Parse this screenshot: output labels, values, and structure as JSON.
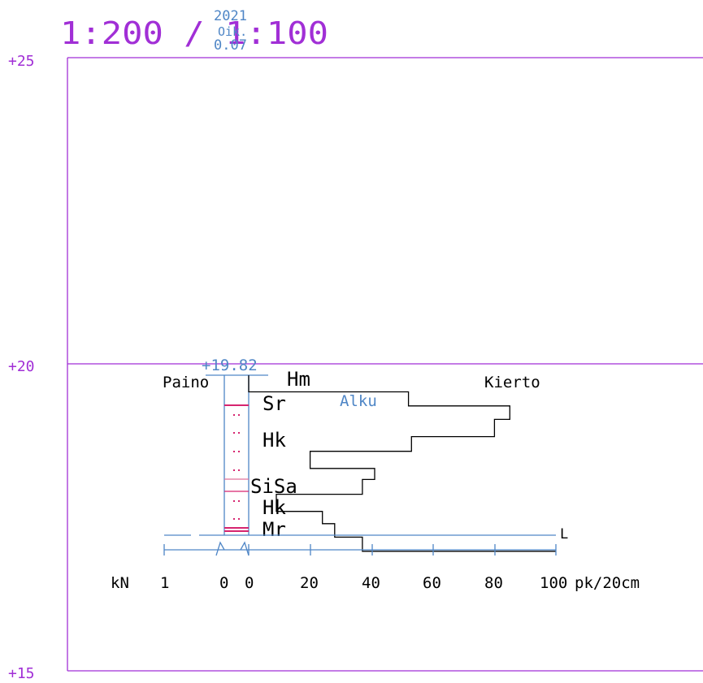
{
  "header": {
    "scale": "1:200 / 1:100",
    "year": "2021",
    "oik_label": "Oik.",
    "oik_value": "0.07"
  },
  "elevations": {
    "top": "+25",
    "middle": "+20",
    "bottom": "+15"
  },
  "borehole": {
    "ground_level": "+19.82",
    "left_label": "Paino",
    "right_label": "Kierto",
    "start_label": "Alku",
    "end_label": "L",
    "soil_layers": [
      "Hm",
      "Sr",
      "Hk",
      "SiSa",
      "Hk",
      "Mr"
    ]
  },
  "axis": {
    "kn_label": "kN",
    "kn_one": "1",
    "zero_left": "0",
    "zero_right": "0",
    "ticks": [
      "20",
      "40",
      "60",
      "80",
      "100"
    ],
    "unit": "pk/20cm"
  },
  "chart_data": {
    "type": "line",
    "xlabel": "pk/20cm",
    "x_ticks": [
      0,
      20,
      40,
      60,
      80,
      100
    ],
    "ylim": [
      15,
      25
    ],
    "series": [
      {
        "name": "Kierto",
        "steps": [
          {
            "x": 0,
            "from": 19.82,
            "to": 19.55
          },
          {
            "x": 52,
            "from": 19.55,
            "to": 19.32
          },
          {
            "x": 85,
            "from": 19.32,
            "to": 19.1
          },
          {
            "x": 80,
            "from": 19.1,
            "to": 18.82
          },
          {
            "x": 53,
            "from": 18.82,
            "to": 18.58
          },
          {
            "x": 20,
            "from": 18.58,
            "to": 18.3
          },
          {
            "x": 41,
            "from": 18.3,
            "to": 18.12
          },
          {
            "x": 37,
            "from": 18.12,
            "to": 17.88
          },
          {
            "x": 9,
            "from": 17.88,
            "to": 17.6
          },
          {
            "x": 24,
            "from": 17.6,
            "to": 17.4
          },
          {
            "x": 28,
            "from": 17.4,
            "to": 17.18
          },
          {
            "x": 37,
            "from": 17.18,
            "to": 16.95
          },
          {
            "x": 100,
            "from": 16.95,
            "to": 16.95
          }
        ]
      }
    ]
  }
}
